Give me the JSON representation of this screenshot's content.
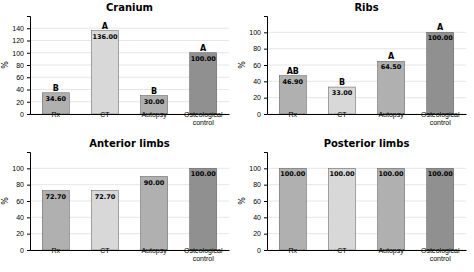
{
  "chart_data": [
    {
      "type": "bar",
      "title": "Cranium",
      "categories": [
        "Rx",
        "CT",
        "Autopsy",
        "Osteological\ncontrol"
      ],
      "values": [
        34.6,
        136.0,
        30.0,
        100.0
      ],
      "value_labels": [
        "34.60",
        "136.00",
        "30.00",
        "100.00"
      ],
      "annotations": [
        "B",
        "A",
        "B",
        "A"
      ],
      "colors": [
        "#b0b0b0",
        "#d8d8d8",
        "#b0b0b0",
        "#909090"
      ],
      "ylabel": "%",
      "ylim": [
        0,
        160
      ],
      "yticks": [
        0,
        20,
        40,
        60,
        80,
        100,
        120,
        140
      ],
      "grid": true,
      "data_labels": true
    },
    {
      "type": "bar",
      "title": "Ribs",
      "categories": [
        "Rx",
        "CT",
        "Autopsy",
        "Osteological\ncontrol"
      ],
      "values": [
        46.9,
        33.0,
        64.5,
        100.0
      ],
      "value_labels": [
        "46.90",
        "33.00",
        "64.50",
        "100.00"
      ],
      "annotations": [
        "AB",
        "B",
        "A",
        "A"
      ],
      "colors": [
        "#b0b0b0",
        "#d8d8d8",
        "#b0b0b0",
        "#909090"
      ],
      "ylabel": "%",
      "ylim": [
        0,
        120
      ],
      "yticks": [
        0,
        20,
        40,
        60,
        80,
        100
      ],
      "grid": true,
      "data_labels": true
    },
    {
      "type": "bar",
      "title": "Anterior limbs",
      "categories": [
        "Rx",
        "CT",
        "Autopsy",
        "Osteological\ncontrol"
      ],
      "values": [
        72.7,
        72.7,
        90.0,
        100.0
      ],
      "value_labels": [
        "72.70",
        "72.70",
        "90.00",
        "100.00"
      ],
      "colors": [
        "#b0b0b0",
        "#d8d8d8",
        "#b0b0b0",
        "#909090"
      ],
      "ylabel": "%",
      "ylim": [
        0,
        120
      ],
      "yticks": [
        0,
        20,
        40,
        60,
        80,
        100
      ],
      "grid": true,
      "data_labels": true
    },
    {
      "type": "bar",
      "title": "Posterior limbs",
      "categories": [
        "Rx",
        "CT",
        "Autopsy",
        "Osteological\ncontrol"
      ],
      "values": [
        100.0,
        100.0,
        100.0,
        100.0
      ],
      "value_labels": [
        "100.00",
        "100.00",
        "100.00",
        "100.00"
      ],
      "colors": [
        "#b0b0b0",
        "#d8d8d8",
        "#b0b0b0",
        "#909090"
      ],
      "ylabel": "%",
      "ylim": [
        0,
        120
      ],
      "yticks": [
        0,
        20,
        40,
        60,
        80,
        100
      ],
      "grid": true,
      "data_labels": true
    }
  ]
}
